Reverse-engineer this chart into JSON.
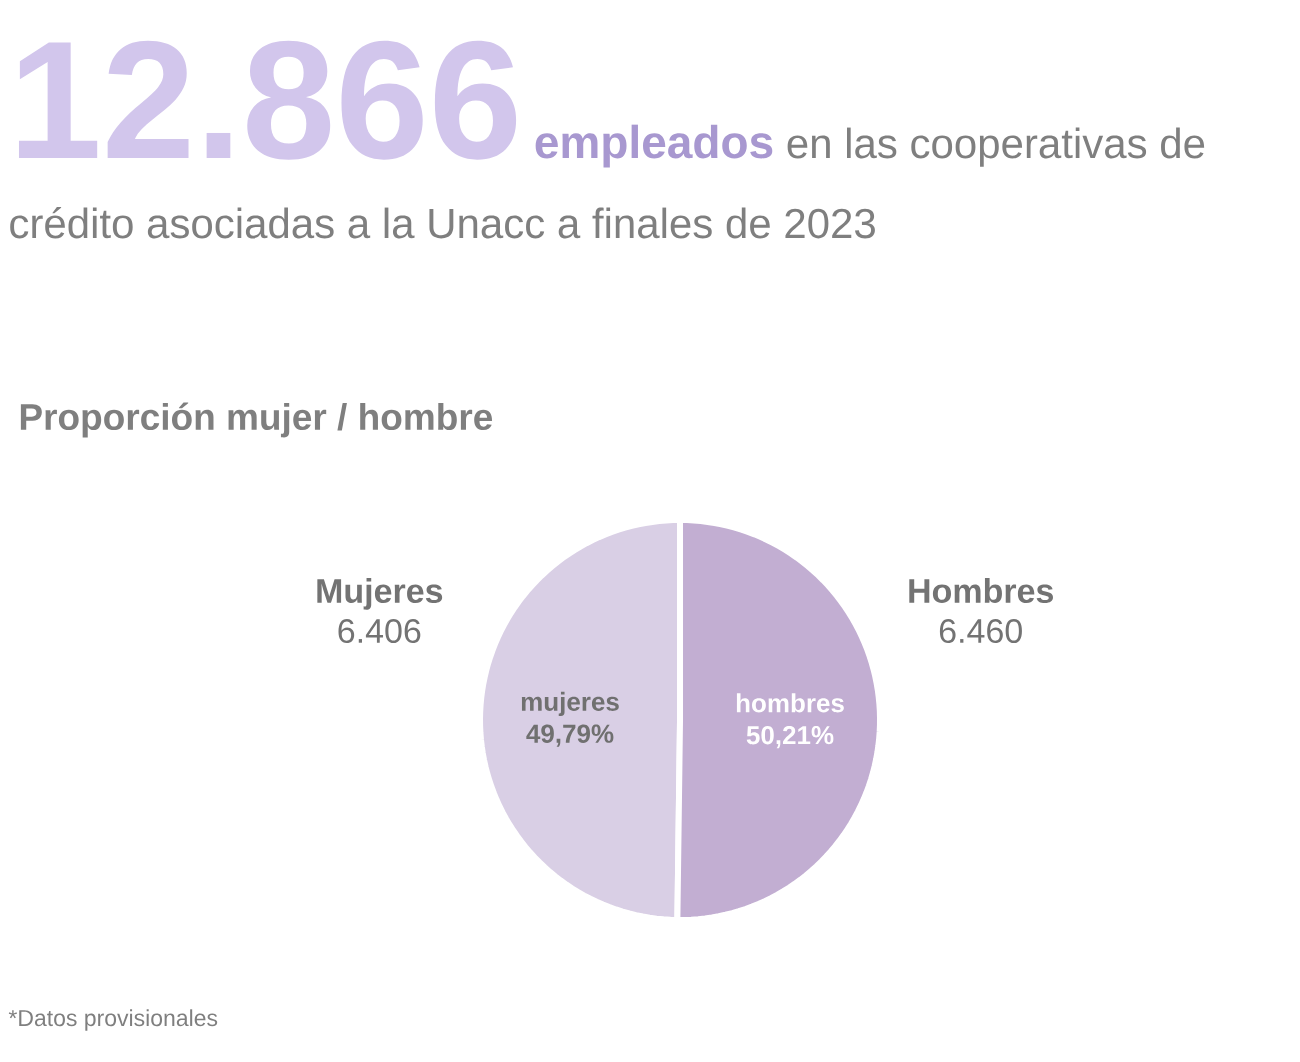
{
  "chart_data": {
    "type": "pie",
    "title": "12.866",
    "subtitle": "**empleados** en las cooperativas de crédito asociadas a la Unacc a finales de 2023",
    "categories": [
      "Mujeres",
      "Hombres"
    ],
    "values": [
      6406,
      6460
    ],
    "colors": [
      "#d9cfe5",
      "#c2aed2"
    ],
    "value_labels": [
      "6.406",
      "6.460"
    ],
    "annotations": [
      "Proporción mujer / hombre",
      "mujeres 49,79%",
      "hombres 50,21%",
      "*Datos provisionales"
    ]
  }
}
